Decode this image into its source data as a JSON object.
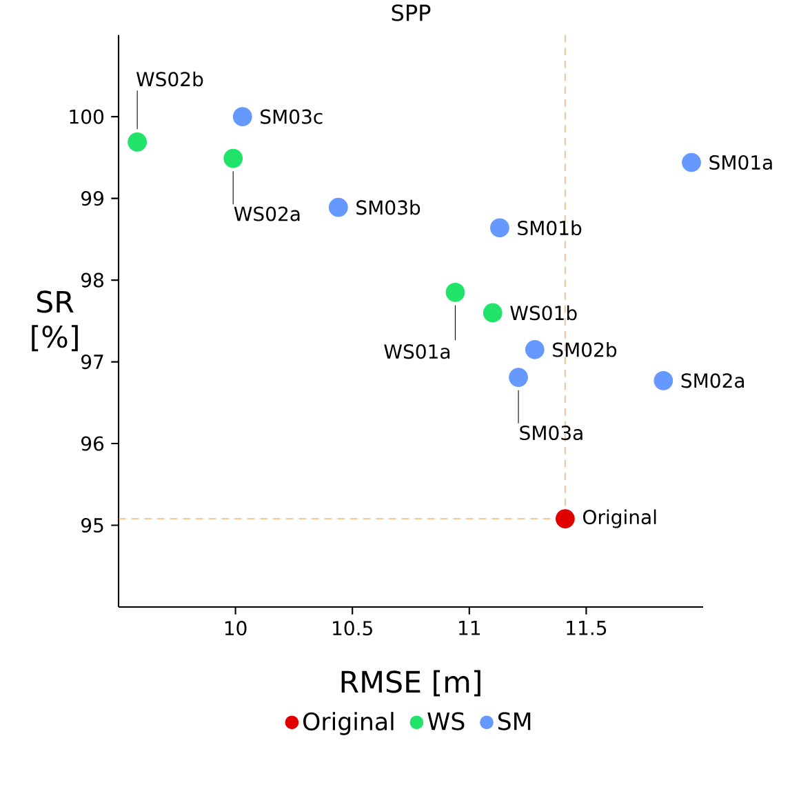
{
  "chart_data": {
    "type": "scatter",
    "title": "SPP",
    "xlabel": "RMSE [m]",
    "ylabel": "SR [%]",
    "xlim": [
      9.5,
      12
    ],
    "ylim": [
      94,
      101
    ],
    "xticks": [
      10,
      10.5,
      11,
      11.5
    ],
    "yticks": [
      95,
      96,
      97,
      98,
      99,
      100
    ],
    "grid": false,
    "legend": "bottom",
    "series": [
      {
        "name": "Original",
        "color": "#e00000",
        "x": [
          11.41
        ],
        "values": [
          95.08
        ]
      },
      {
        "name": "WS",
        "color": "#22e36a",
        "x": [
          9.58,
          9.99,
          10.94,
          11.1
        ],
        "values": [
          99.69,
          99.49,
          97.85,
          97.6
        ]
      },
      {
        "name": "SM",
        "color": "#6699ff",
        "x": [
          10.03,
          10.44,
          11.95,
          11.13,
          11.28,
          11.83,
          11.21
        ],
        "values": [
          100.0,
          98.89,
          99.44,
          98.64,
          97.15,
          96.77,
          96.81
        ]
      }
    ],
    "ref_lines": [
      {
        "axis": "x",
        "value": 11.41,
        "color": "#ff8c1a",
        "line_style": "dashed"
      },
      {
        "axis": "y",
        "value": 95.08,
        "color": "#ff8c1a",
        "line_style": "dashed"
      }
    ],
    "annotations": [
      {
        "text": "WS02b",
        "x": 9.58,
        "y": 99.69
      },
      {
        "text": "WS02a",
        "x": 9.99,
        "y": 99.49
      },
      {
        "text": "WS01a",
        "x": 10.94,
        "y": 97.85
      },
      {
        "text": "WS01b",
        "x": 11.1,
        "y": 97.6
      },
      {
        "text": "SM03c",
        "x": 10.03,
        "y": 100.0
      },
      {
        "text": "SM03b",
        "x": 10.44,
        "y": 98.89
      },
      {
        "text": "SM01a",
        "x": 11.95,
        "y": 99.44
      },
      {
        "text": "SM01b",
        "x": 11.13,
        "y": 98.64
      },
      {
        "text": "SM02b",
        "x": 11.28,
        "y": 97.15
      },
      {
        "text": "SM02a",
        "x": 11.83,
        "y": 96.77
      },
      {
        "text": "SM03a",
        "x": 11.21,
        "y": 96.81
      },
      {
        "text": "Original",
        "x": 11.41,
        "y": 95.08
      }
    ]
  }
}
